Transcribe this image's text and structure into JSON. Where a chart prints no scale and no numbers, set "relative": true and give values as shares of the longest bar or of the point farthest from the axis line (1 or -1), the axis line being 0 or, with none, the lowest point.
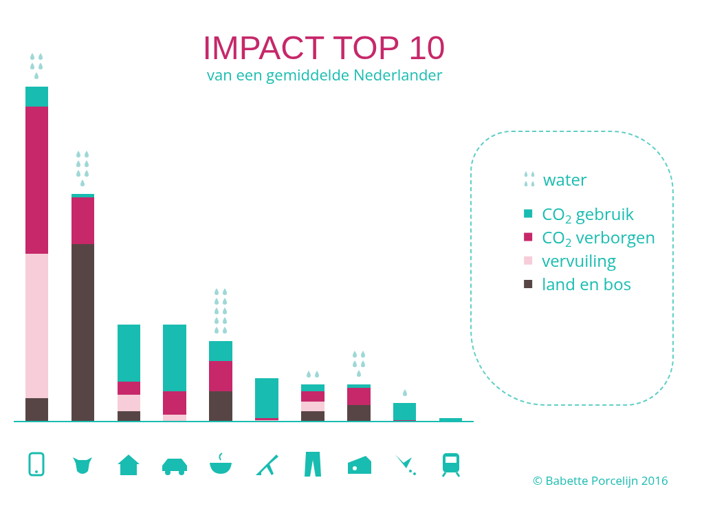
{
  "chart_data": {
    "type": "bar",
    "title": "IMPACT TOP 10",
    "subtitle": "van een gemiddelde Nederlander",
    "relative": true,
    "stacked": true,
    "legend": "right",
    "categories": [
      null,
      null,
      null,
      null,
      null,
      null,
      null,
      null,
      null,
      null
    ],
    "series": [
      {
        "name": "land en bos",
        "color": "#574545",
        "values": [
          0.07,
          0.53,
          0.03,
          null,
          0.09,
          null,
          0.03,
          0.05,
          null,
          null
        ]
      },
      {
        "name": "vervuiling",
        "color": "#f6cdd8",
        "values": [
          0.43,
          null,
          0.05,
          0.02,
          null,
          0.005,
          0.03,
          null,
          null,
          null
        ]
      },
      {
        "name": "CO$_{2}$ verborgen",
        "color": "#c6286a",
        "values": [
          0.44,
          0.14,
          0.04,
          0.07,
          0.09,
          0.005,
          0.03,
          0.05,
          0.005,
          null
        ]
      },
      {
        "name": "CO$_{2}$ gebruik",
        "color": "#19bcb0",
        "values": [
          0.06,
          0.01,
          0.17,
          0.2,
          0.06,
          0.12,
          0.02,
          0.01,
          0.05,
          0.01
        ]
      }
    ],
    "annotations": [
      "water",
      "© Babette Porcelijn 2016"
    ]
  }
}
